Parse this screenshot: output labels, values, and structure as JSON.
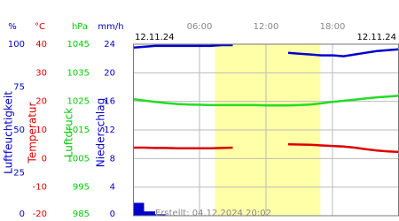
{
  "chart_data": {
    "type": "line",
    "start_date": "12.11.24",
    "end_date": "12.11.24",
    "footer": "Erstellt: 04.12.2024 20:02",
    "xlim": [
      0,
      24
    ],
    "xticks": [
      {
        "value": 6,
        "label": "06:00"
      },
      {
        "value": 12,
        "label": "12:00"
      },
      {
        "value": 18,
        "label": "18:00"
      }
    ],
    "shaded_range": [
      7.4,
      16.9
    ],
    "shade_color": "#ffffa8",
    "grid": true,
    "axes": [
      {
        "unit": "%",
        "label": "Luftfeuchtigkeit",
        "color": "#0000cc",
        "ylim": [
          0,
          100
        ],
        "yticks": [
          0,
          25,
          50,
          75,
          100
        ]
      },
      {
        "unit": "°C",
        "label": "Temperatur",
        "color": "#dd0000",
        "ylim": [
          -20,
          40
        ],
        "yticks": [
          -20,
          -10,
          0,
          10,
          20,
          30,
          40
        ]
      },
      {
        "unit": "hPa",
        "label": "Luftdruck",
        "color": "#00cc00",
        "ylim": [
          985,
          1045
        ],
        "yticks": [
          985,
          995,
          1005,
          1015,
          1025,
          1035,
          1045
        ]
      },
      {
        "unit": "mm/h",
        "label": "Niederschlag",
        "color": "#0000cc",
        "ylim": [
          0,
          24
        ],
        "yticks": [
          0,
          4,
          8,
          12,
          16,
          20,
          24
        ]
      }
    ],
    "x": [
      0,
      1,
      2,
      3,
      4,
      5,
      6,
      7,
      8,
      9,
      10,
      11,
      12,
      13,
      14,
      15,
      16,
      17,
      18,
      19,
      20,
      21,
      22,
      23,
      24
    ],
    "series": [
      {
        "name": "Luftfeuchtigkeit",
        "axis": 0,
        "kind": "line",
        "color": "#0000cc",
        "values": [
          98,
          98.5,
          99,
          99,
          99,
          99,
          99,
          99,
          99.5,
          99.5,
          null,
          null,
          null,
          null,
          95,
          94.5,
          94,
          93.5,
          93.5,
          93,
          94,
          95,
          96,
          96.5,
          97
        ]
      },
      {
        "name": "Temperatur",
        "axis": 1,
        "kind": "line",
        "color": "#dd0000",
        "values": [
          3.8,
          3.8,
          3.7,
          3.7,
          3.6,
          3.6,
          3.6,
          3.6,
          3.7,
          3.8,
          null,
          null,
          null,
          null,
          5,
          4.9,
          4.8,
          4.6,
          4.4,
          4.2,
          3.8,
          3.3,
          2.8,
          2.5,
          2.3
        ]
      },
      {
        "name": "Luftdruck",
        "axis": 2,
        "kind": "line",
        "color": "#22dd22",
        "values": [
          1025.8,
          1025.3,
          1024.8,
          1024.4,
          1024.1,
          1023.9,
          1023.8,
          1023.7,
          1023.7,
          1023.7,
          1023.7,
          1023.7,
          1023.6,
          1023.6,
          1023.6,
          1023.7,
          1023.9,
          1024.3,
          1024.8,
          1025.2,
          1025.6,
          1026,
          1026.4,
          1026.7,
          1027
        ]
      },
      {
        "name": "Niederschlag",
        "axis": 3,
        "kind": "bar",
        "color": "#0000cc",
        "values": [
          1.8,
          0.6,
          0.2,
          0,
          0,
          0,
          0,
          0,
          0,
          0,
          0,
          0,
          0,
          0,
          0,
          0,
          0,
          0,
          0,
          0,
          0,
          0,
          0,
          0,
          0
        ]
      }
    ]
  }
}
